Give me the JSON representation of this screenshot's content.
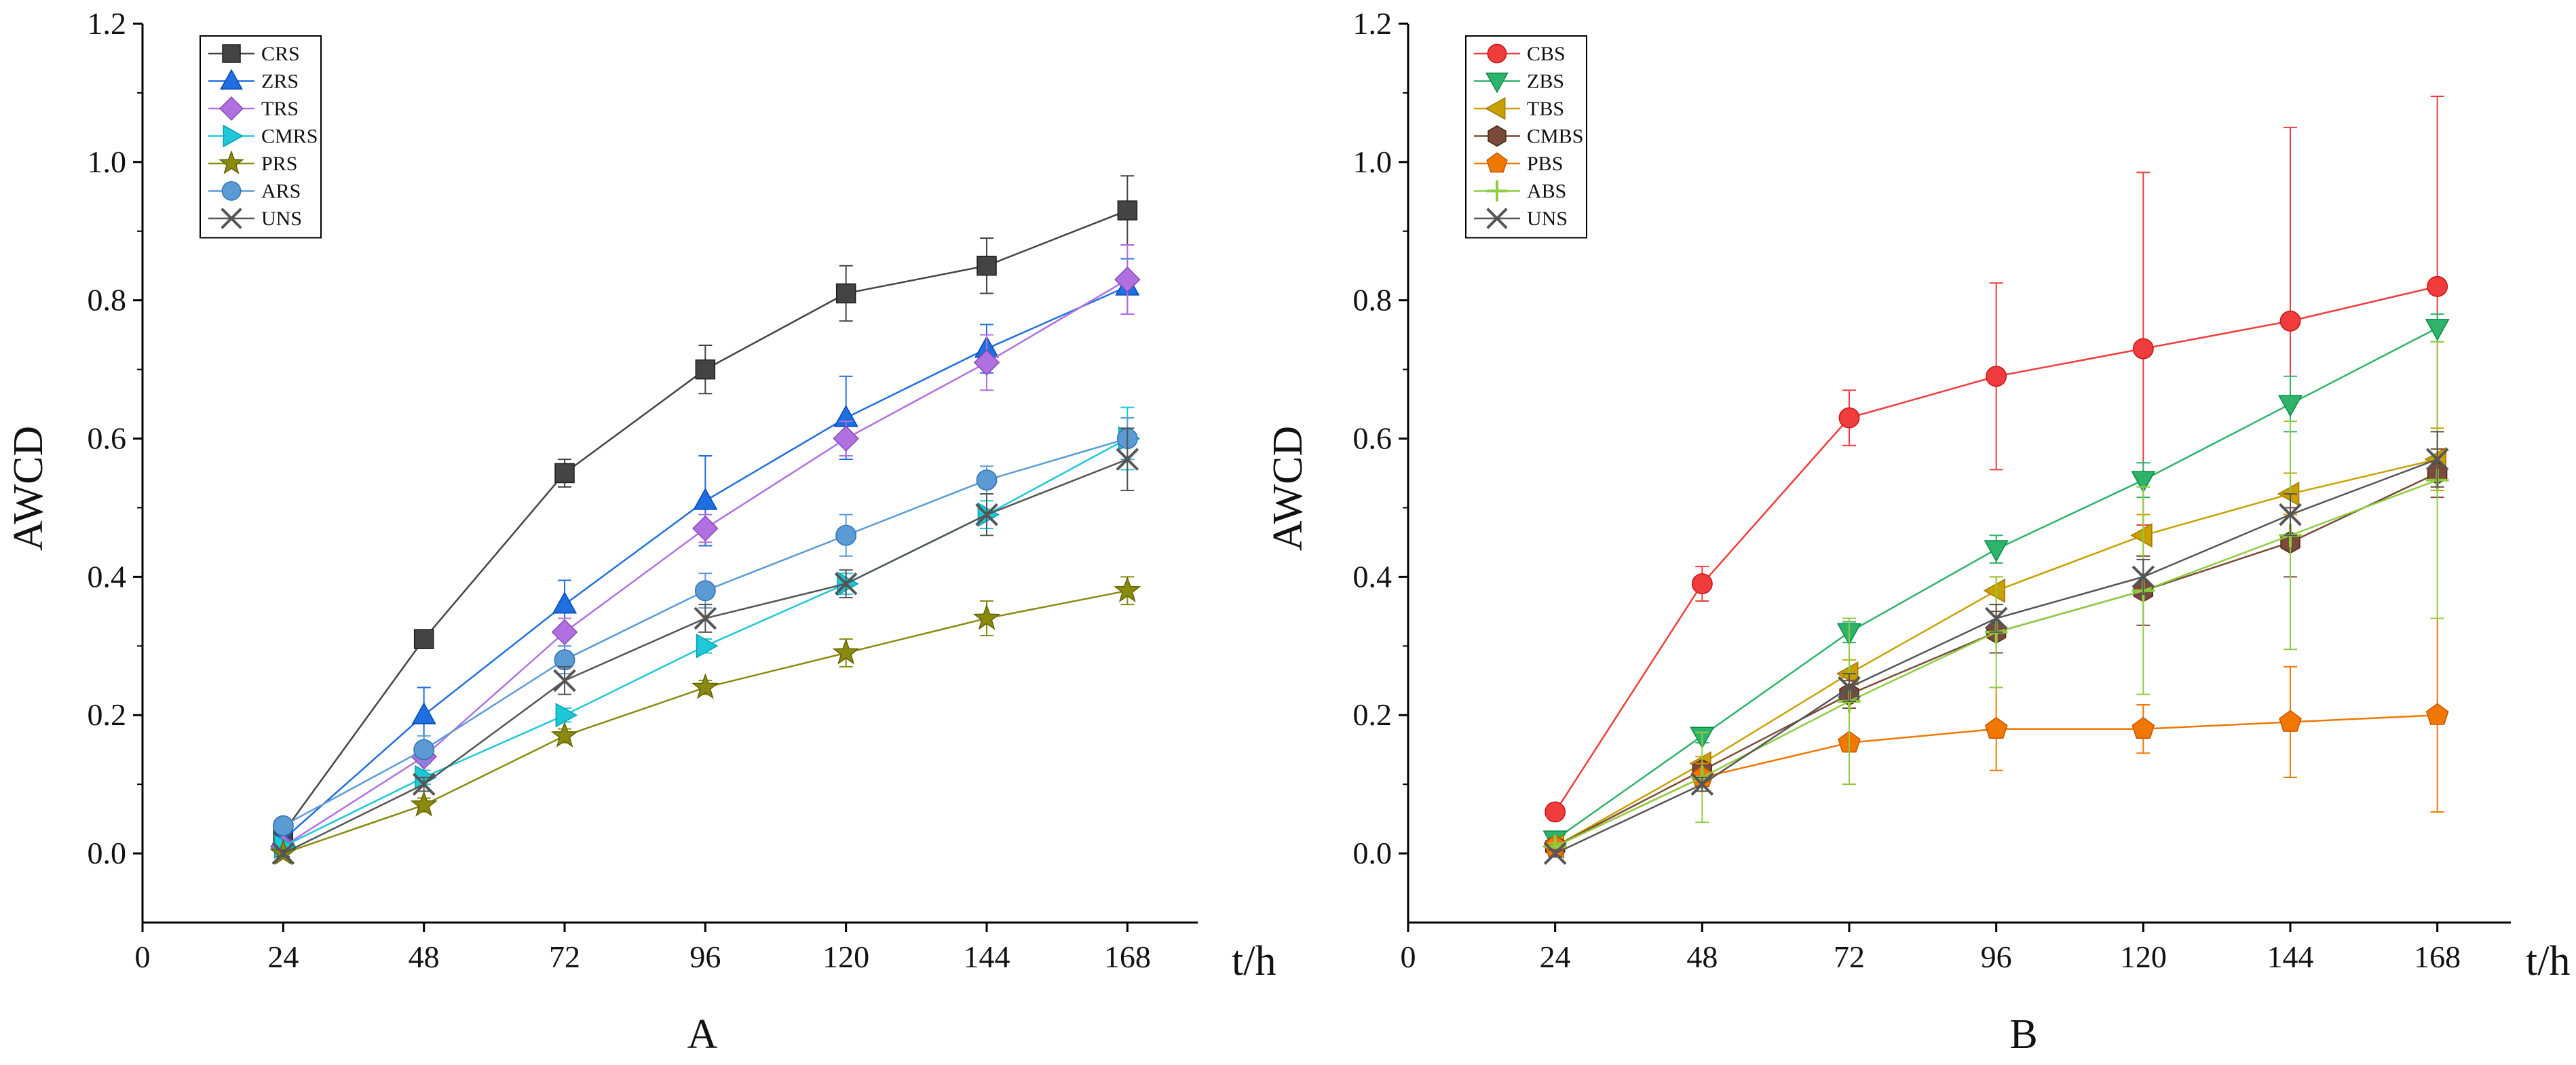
{
  "figure": {
    "panel_labels": [
      "A",
      "B"
    ]
  },
  "chart_data": [
    {
      "type": "line",
      "panel": "A",
      "title": "",
      "xlabel": "t/h",
      "ylabel": "AWCD",
      "xticks": [
        0,
        24,
        48,
        72,
        96,
        120,
        144,
        168
      ],
      "yticks": [
        "0.0",
        "0.2",
        "0.4",
        "0.6",
        "0.8",
        "1.0",
        "1.2"
      ],
      "xlim": [
        0,
        180
      ],
      "ylim": [
        -0.1,
        1.2
      ],
      "legend_position": "top-left",
      "x": [
        24,
        48,
        72,
        96,
        120,
        144,
        168
      ],
      "series": [
        {
          "name": "CRS",
          "color": "#444444",
          "marker": "square",
          "values": [
            0.03,
            0.31,
            0.55,
            0.7,
            0.81,
            0.85,
            0.93
          ],
          "errors": [
            0.01,
            0.01,
            0.02,
            0.035,
            0.04,
            0.04,
            0.05
          ]
        },
        {
          "name": "ZRS",
          "color": "#1f6fe0",
          "marker": "triangle-up",
          "values": [
            0.02,
            0.2,
            0.36,
            0.51,
            0.63,
            0.73,
            0.82
          ],
          "errors": [
            0.01,
            0.04,
            0.035,
            0.065,
            0.06,
            0.035,
            0.04
          ]
        },
        {
          "name": "TRS",
          "color": "#b070e0",
          "marker": "diamond",
          "values": [
            0.01,
            0.14,
            0.32,
            0.47,
            0.6,
            0.71,
            0.83
          ],
          "errors": [
            0.01,
            0.02,
            0.02,
            0.02,
            0.025,
            0.04,
            0.05
          ]
        },
        {
          "name": "CMRS",
          "color": "#1ec8d8",
          "marker": "triangle-right",
          "values": [
            0.01,
            0.11,
            0.2,
            0.3,
            0.39,
            0.49,
            0.6
          ],
          "errors": [
            0.005,
            0.01,
            0.01,
            0.01,
            0.015,
            0.02,
            0.045
          ]
        },
        {
          "name": "PRS",
          "color": "#8a8a10",
          "marker": "star",
          "values": [
            0.0,
            0.07,
            0.17,
            0.24,
            0.29,
            0.34,
            0.38
          ],
          "errors": [
            0.005,
            0.01,
            0.01,
            0.01,
            0.02,
            0.025,
            0.02
          ]
        },
        {
          "name": "ARS",
          "color": "#5b9bd5",
          "marker": "circle",
          "values": [
            0.04,
            0.15,
            0.28,
            0.38,
            0.46,
            0.54,
            0.6
          ],
          "errors": [
            0.01,
            0.02,
            0.02,
            0.025,
            0.03,
            0.02,
            0.03
          ]
        },
        {
          "name": "UNS",
          "color": "#555555",
          "marker": "x",
          "values": [
            0.0,
            0.1,
            0.25,
            0.34,
            0.39,
            0.49,
            0.57
          ],
          "errors": [
            0.005,
            0.01,
            0.02,
            0.02,
            0.02,
            0.03,
            0.045
          ]
        }
      ]
    },
    {
      "type": "line",
      "panel": "B",
      "title": "",
      "xlabel": "t/h",
      "ylabel": "AWCD",
      "xticks": [
        0,
        24,
        48,
        72,
        96,
        120,
        144,
        168
      ],
      "yticks": [
        "0.0",
        "0.2",
        "0.4",
        "0.6",
        "0.8",
        "1.0",
        "1.2"
      ],
      "xlim": [
        0,
        180
      ],
      "ylim": [
        -0.1,
        1.2
      ],
      "legend_position": "top-left",
      "x": [
        24,
        48,
        72,
        96,
        120,
        144,
        168
      ],
      "series": [
        {
          "name": "CBS",
          "color": "#f03c3c",
          "marker": "circle",
          "values": [
            0.06,
            0.39,
            0.63,
            0.69,
            0.73,
            0.77,
            0.82
          ],
          "errors": [
            0.01,
            0.025,
            0.04,
            0.135,
            0.255,
            0.28,
            0.275
          ]
        },
        {
          "name": "ZBS",
          "color": "#2eb36b",
          "marker": "triangle-down",
          "values": [
            0.02,
            0.17,
            0.32,
            0.44,
            0.54,
            0.65,
            0.76
          ],
          "errors": [
            0.005,
            0.01,
            0.015,
            0.02,
            0.025,
            0.04,
            0.02
          ]
        },
        {
          "name": "TBS",
          "color": "#c9a000",
          "marker": "triangle-left",
          "values": [
            0.01,
            0.13,
            0.26,
            0.38,
            0.46,
            0.52,
            0.57
          ],
          "errors": [
            0.005,
            0.01,
            0.02,
            0.02,
            0.03,
            0.03,
            0.045
          ]
        },
        {
          "name": "CMBS",
          "color": "#7a4a3a",
          "marker": "hexagon",
          "values": [
            0.01,
            0.12,
            0.23,
            0.32,
            0.38,
            0.45,
            0.55
          ],
          "errors": [
            0.005,
            0.01,
            0.02,
            0.03,
            0.05,
            0.05,
            0.035
          ]
        },
        {
          "name": "PBS",
          "color": "#f07800",
          "marker": "pentagon",
          "values": [
            0.01,
            0.11,
            0.16,
            0.18,
            0.18,
            0.19,
            0.2
          ],
          "errors": [
            0.005,
            0.02,
            0.06,
            0.06,
            0.035,
            0.08,
            0.14
          ]
        },
        {
          "name": "ABS",
          "color": "#90cc40",
          "marker": "plus",
          "values": [
            0.01,
            0.11,
            0.22,
            0.32,
            0.38,
            0.46,
            0.54
          ],
          "errors": [
            0.005,
            0.065,
            0.12,
            0.08,
            0.15,
            0.165,
            0.2
          ]
        },
        {
          "name": "UNS",
          "color": "#555555",
          "marker": "x",
          "values": [
            0.0,
            0.1,
            0.24,
            0.34,
            0.4,
            0.49,
            0.57
          ],
          "errors": [
            0.005,
            0.01,
            0.02,
            0.02,
            0.025,
            0.03,
            0.04
          ]
        }
      ]
    }
  ]
}
